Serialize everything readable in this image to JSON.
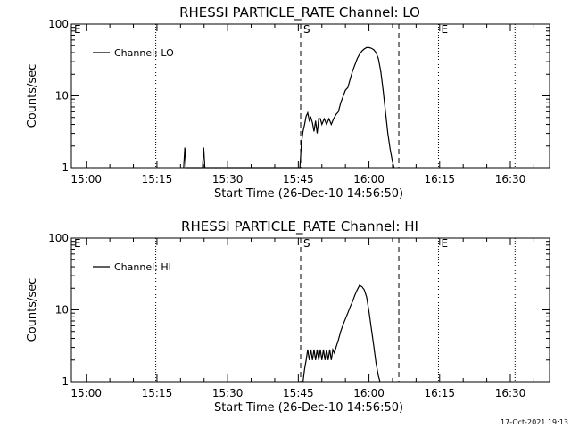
{
  "chart_data": [
    {
      "type": "line",
      "title": "RHESSI PARTICLE_RATE Channel: LO",
      "xlabel": "Start Time (26-Dec-10 14:56:50)",
      "ylabel": "Counts/sec",
      "y_scale": "log",
      "ylim": [
        1,
        100
      ],
      "y_ticks": [
        {
          "v": 1,
          "label": "1"
        },
        {
          "v": 10,
          "label": "10"
        },
        {
          "v": 100,
          "label": "100"
        }
      ],
      "xlim": [
        "14:56:50",
        "16:38:20"
      ],
      "x_ticks": [
        "15:00",
        "15:15",
        "15:30",
        "15:45",
        "16:00",
        "16:15",
        "16:30"
      ],
      "legend": {
        "placement": "top-left",
        "entries": [
          "Channel: LO"
        ]
      },
      "series": [
        {
          "name": "Channel: LO",
          "points": [
            [
              "15:20:40",
              1
            ],
            [
              "15:20:55",
              1.9
            ],
            [
              "15:21:10",
              1
            ],
            [
              "15:24:40",
              1
            ],
            [
              "15:24:55",
              1.9
            ],
            [
              "15:25:10",
              1
            ],
            [
              "15:45:20",
              1
            ],
            [
              "15:45:40",
              2.2
            ],
            [
              "15:46:00",
              3.2
            ],
            [
              "15:46:20",
              4.0
            ],
            [
              "15:46:40",
              5.2
            ],
            [
              "15:47:00",
              5.8
            ],
            [
              "15:47:20",
              4.5
            ],
            [
              "15:47:40",
              5.0
            ],
            [
              "15:48:00",
              4.2
            ],
            [
              "15:48:20",
              3.2
            ],
            [
              "15:48:40",
              4.5
            ],
            [
              "15:49:00",
              3.0
            ],
            [
              "15:49:20",
              4.8
            ],
            [
              "15:49:40",
              4.8
            ],
            [
              "15:50:00",
              4.0
            ],
            [
              "15:50:30",
              4.8
            ],
            [
              "15:51:00",
              4.0
            ],
            [
              "15:51:30",
              4.8
            ],
            [
              "15:52:00",
              4.0
            ],
            [
              "15:52:30",
              4.8
            ],
            [
              "15:53:00",
              5.5
            ],
            [
              "15:53:30",
              6.0
            ],
            [
              "15:54:00",
              8.0
            ],
            [
              "15:54:30",
              9.8
            ],
            [
              "15:55:00",
              12
            ],
            [
              "15:55:30",
              13
            ],
            [
              "15:56:00",
              17
            ],
            [
              "15:56:30",
              22
            ],
            [
              "15:57:00",
              27
            ],
            [
              "15:57:30",
              33
            ],
            [
              "15:58:00",
              38
            ],
            [
              "15:58:30",
              42
            ],
            [
              "15:59:00",
              45
            ],
            [
              "15:59:30",
              47
            ],
            [
              "16:00:00",
              47
            ],
            [
              "16:00:30",
              46
            ],
            [
              "16:01:00",
              44
            ],
            [
              "16:01:30",
              40
            ],
            [
              "16:02:00",
              33
            ],
            [
              "16:02:30",
              22
            ],
            [
              "16:03:00",
              12
            ],
            [
              "16:03:30",
              6
            ],
            [
              "16:04:00",
              3
            ],
            [
              "16:04:30",
              1.8
            ],
            [
              "16:05:00",
              1.2
            ],
            [
              "16:05:20",
              1
            ]
          ]
        }
      ],
      "vlines": [
        {
          "time": "15:14:45",
          "style": "dotted",
          "label": ""
        },
        {
          "time": "15:45:30",
          "style": "dashed",
          "label": "S"
        },
        {
          "time": "16:06:20",
          "style": "dashed",
          "label": ""
        },
        {
          "time": "16:14:45",
          "style": "dotted",
          "label": "E"
        },
        {
          "time": "16:31:00",
          "style": "dotted",
          "label": ""
        }
      ],
      "corner_marker": "E"
    },
    {
      "type": "line",
      "title": "RHESSI PARTICLE_RATE Channel: HI",
      "xlabel": "Start Time (26-Dec-10 14:56:50)",
      "ylabel": "Counts/sec",
      "y_scale": "log",
      "ylim": [
        1,
        100
      ],
      "y_ticks": [
        {
          "v": 1,
          "label": "1"
        },
        {
          "v": 10,
          "label": "10"
        },
        {
          "v": 100,
          "label": "100"
        }
      ],
      "xlim": [
        "14:56:50",
        "16:38:20"
      ],
      "x_ticks": [
        "15:00",
        "15:15",
        "15:30",
        "15:45",
        "16:00",
        "16:15",
        "16:30"
      ],
      "legend": {
        "placement": "top-left",
        "entries": [
          "Channel: HI"
        ]
      },
      "series": [
        {
          "name": "Channel: HI",
          "points": [
            [
              "15:46:00",
              1
            ],
            [
              "15:46:20",
              1.5
            ],
            [
              "15:46:40",
              2.0
            ],
            [
              "15:47:00",
              2.8
            ],
            [
              "15:47:20",
              2.0
            ],
            [
              "15:47:40",
              2.8
            ],
            [
              "15:48:00",
              2.0
            ],
            [
              "15:48:20",
              2.8
            ],
            [
              "15:48:40",
              2.0
            ],
            [
              "15:49:00",
              2.8
            ],
            [
              "15:49:20",
              2.0
            ],
            [
              "15:49:40",
              2.8
            ],
            [
              "15:50:00",
              2.0
            ],
            [
              "15:50:20",
              2.8
            ],
            [
              "15:50:40",
              2.0
            ],
            [
              "15:51:00",
              2.8
            ],
            [
              "15:51:20",
              2.0
            ],
            [
              "15:51:40",
              2.8
            ],
            [
              "15:52:00",
              2.0
            ],
            [
              "15:52:20",
              2.8
            ],
            [
              "15:52:40",
              2.5
            ],
            [
              "15:53:00",
              3.0
            ],
            [
              "15:53:30",
              3.8
            ],
            [
              "15:54:00",
              5.0
            ],
            [
              "15:54:30",
              6.2
            ],
            [
              "15:55:00",
              7.5
            ],
            [
              "15:55:30",
              9.0
            ],
            [
              "15:56:00",
              11
            ],
            [
              "15:56:30",
              13
            ],
            [
              "15:57:00",
              16
            ],
            [
              "15:57:30",
              19
            ],
            [
              "15:58:00",
              22
            ],
            [
              "15:58:30",
              21
            ],
            [
              "15:59:00",
              19
            ],
            [
              "15:59:30",
              15
            ],
            [
              "16:00:00",
              9.5
            ],
            [
              "16:00:30",
              5.5
            ],
            [
              "16:01:00",
              3.2
            ],
            [
              "16:01:30",
              1.8
            ],
            [
              "16:02:00",
              1.2
            ],
            [
              "16:02:20",
              1
            ]
          ]
        }
      ],
      "vlines": [
        {
          "time": "15:14:45",
          "style": "dotted",
          "label": ""
        },
        {
          "time": "15:45:30",
          "style": "dashed",
          "label": "S"
        },
        {
          "time": "16:06:20",
          "style": "dashed",
          "label": ""
        },
        {
          "time": "16:14:45",
          "style": "dotted",
          "label": "E"
        },
        {
          "time": "16:31:00",
          "style": "dotted",
          "label": ""
        }
      ],
      "corner_marker": "E"
    }
  ],
  "footer": {
    "timestamp": "17-Oct-2021 19:13"
  }
}
